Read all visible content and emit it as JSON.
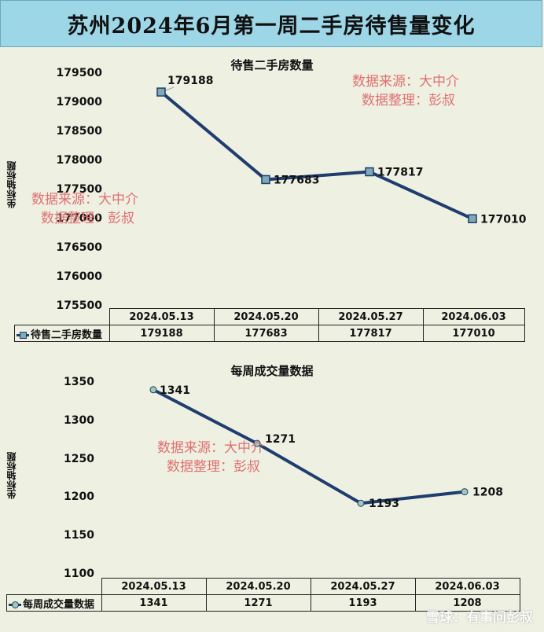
{
  "title": "苏州2024年6月第一周二手房待售量变化",
  "watermark": {
    "line1": "数据来源：大中介",
    "line2": "数据整理：彭叔"
  },
  "footer": "雪球：有事问彭叔",
  "chart_data": [
    {
      "type": "line",
      "title": "待售二手房数量",
      "ylabel": "坐标轴标题",
      "ylim": [
        175500,
        179500
      ],
      "yticks": [
        "179500",
        "179000",
        "178500",
        "178000",
        "177500",
        "177000",
        "176500",
        "176000",
        "175500"
      ],
      "categories": [
        "2024.05.13",
        "2024.05.20",
        "2024.05.27",
        "2024.06.03"
      ],
      "series": [
        {
          "name": "待售二手房数量",
          "values": [
            179188,
            177683,
            177817,
            177010
          ],
          "color": "#1f3d6e",
          "marker": "square"
        }
      ]
    },
    {
      "type": "line",
      "title": "每周成交量数据",
      "ylabel": "坐标轴标题",
      "ylim": [
        1100,
        1350
      ],
      "yticks": [
        "1350",
        "1300",
        "1250",
        "1200",
        "1150",
        "1100"
      ],
      "categories": [
        "2024.05.13",
        "2024.05.20",
        "2024.05.27",
        "2024.06.03"
      ],
      "series": [
        {
          "name": "每周成交量数据",
          "values": [
            1341,
            1271,
            1193,
            1208
          ],
          "color": "#1f3d6e",
          "marker": "circle"
        }
      ]
    }
  ]
}
